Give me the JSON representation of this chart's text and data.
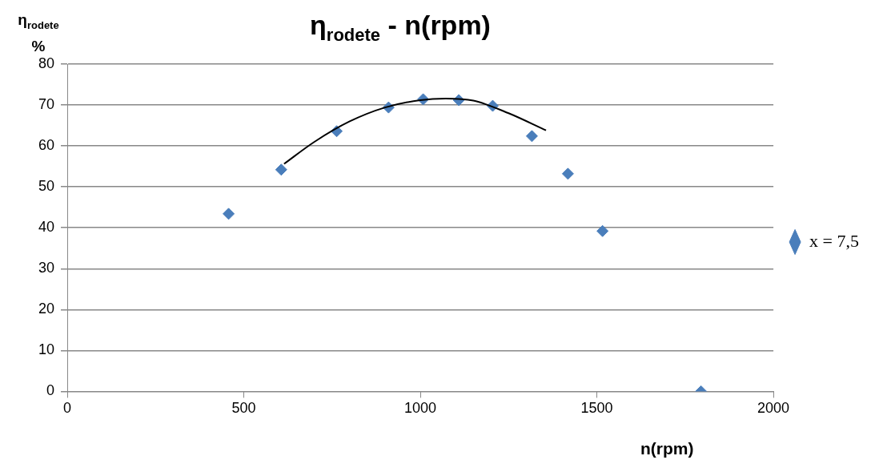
{
  "chart_data": {
    "type": "scatter",
    "title": "η$_{rodete}$ - n(rpm)",
    "xlabel": "n(rpm)",
    "ylabel": "η$_{rodete}$ %",
    "series": [
      {
        "name": "x = 7,5",
        "color": "#4a7ebb",
        "x": [
          457,
          606,
          763,
          910,
          1008,
          1109,
          1205,
          1316,
          1418,
          1516,
          1795
        ],
        "values": [
          43.4,
          54.2,
          63.6,
          69.4,
          71.4,
          71.2,
          69.8,
          62.4,
          53.2,
          39.2,
          0
        ]
      },
      {
        "type": "line",
        "color": "#000000",
        "marker": "none",
        "x": [
          614,
          700,
          800,
          900,
          1000,
          1072,
          1150,
          1250,
          1356
        ],
        "values": [
          55.6,
          61.0,
          66.0,
          69.4,
          71.2,
          71.6,
          71.1,
          68.0,
          63.8
        ]
      }
    ],
    "xlim": [
      0,
      2000
    ],
    "xticks": [
      0,
      500,
      1000,
      1500,
      2000
    ],
    "ylim": [
      0,
      80
    ],
    "yticks": [
      0,
      10,
      20,
      30,
      40,
      50,
      60,
      70,
      80
    ],
    "grid": "y",
    "legend": "right",
    "marker": "diamond"
  }
}
